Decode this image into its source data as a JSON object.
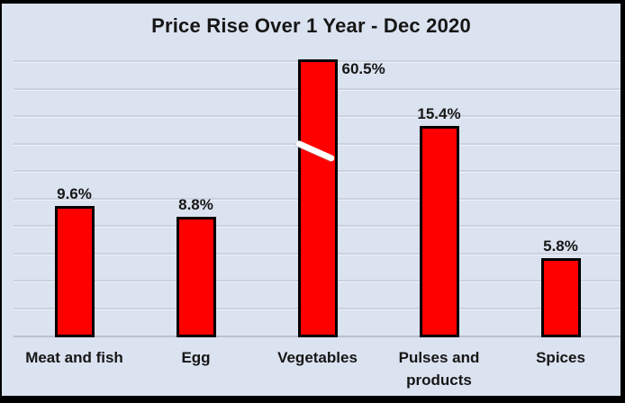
{
  "chart_data": {
    "type": "bar",
    "title": "Price Rise Over 1 Year - Dec 2020",
    "categories": [
      "Meat and fish",
      "Egg",
      "Vegetables",
      "Pulses and products",
      "Spices"
    ],
    "values": [
      9.6,
      8.8,
      60.5,
      15.4,
      5.8
    ],
    "data_labels": [
      "9.6%",
      "8.8%",
      "60.5%",
      "15.4%",
      "5.8%"
    ],
    "unit": "%",
    "xlabel": "",
    "ylabel": "",
    "ylim": [
      0,
      20
    ],
    "grid_step": 2,
    "grid": true,
    "legend_position": "none",
    "y_axis_tick_labels_visible": false,
    "axis_break": {
      "category": "Vegetables",
      "value": 60.5,
      "drawn_as": "bar truncated at top of plot with white diagonal break mark"
    },
    "colors": {
      "bar_fill": "#fe0000",
      "bar_border": "#000000",
      "background": "#dbe2f0",
      "gridline": "#cbd1df",
      "axis_line": "#b9c0d0",
      "text": "#161616",
      "frame_border": "#000000",
      "break_mark": "#ffffff"
    }
  }
}
